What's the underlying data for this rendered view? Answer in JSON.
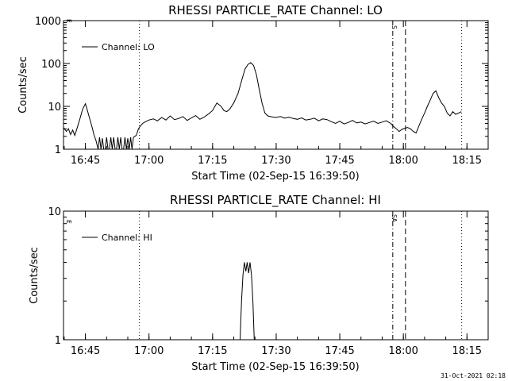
{
  "footer": {
    "timestamp": "31-Oct-2021 02:18"
  },
  "chart_data": [
    {
      "type": "line",
      "title": "RHESSI PARTICLE_RATE Channel: LO",
      "xlabel": "Start Time (02-Sep-15 16:39:50)",
      "ylabel": "Counts/sec",
      "y_scale": "log",
      "ylim": [
        1,
        1000
      ],
      "xlim": [
        "16:39:50",
        "18:20:00"
      ],
      "x_ticks": [
        "16:45",
        "17:00",
        "17:15",
        "17:30",
        "17:45",
        "18:00",
        "18:15"
      ],
      "y_ticks": [
        "1",
        "10",
        "100",
        "1000"
      ],
      "legend": {
        "position": "top-left",
        "entries": [
          "Channel: LO"
        ]
      },
      "markers": [
        {
          "time": "16:57:45",
          "style": "dotted"
        },
        {
          "time": "17:57:30",
          "style": "dash-dot"
        },
        {
          "time": "18:00:30",
          "style": "dashed"
        },
        {
          "time": "18:13:45",
          "style": "dotted"
        }
      ],
      "marker_labels": [
        "S",
        "E"
      ],
      "series": [
        {
          "name": "Channel: LO",
          "x": [
            "16:39:50",
            "16:40:30",
            "16:41:00",
            "16:41:30",
            "16:42:00",
            "16:42:30",
            "16:43:00",
            "16:43:40",
            "16:44:20",
            "16:45:00",
            "16:45:20",
            "16:45:50",
            "16:46:30",
            "16:47:00",
            "16:47:30",
            "16:48:00",
            "16:48:20",
            "16:48:40",
            "16:49:00",
            "16:49:20",
            "16:49:40",
            "16:50:00",
            "16:50:20",
            "16:50:40",
            "16:51:00",
            "16:51:20",
            "16:51:40",
            "16:52:00",
            "16:52:20",
            "16:52:40",
            "16:53:00",
            "16:53:20",
            "16:53:40",
            "16:54:00",
            "16:54:20",
            "16:54:40",
            "16:55:00",
            "16:55:20",
            "16:55:40",
            "16:56:00",
            "16:56:20",
            "16:56:40",
            "16:57:00",
            "16:57:30",
            "16:58:00",
            "16:58:30",
            "16:59:00",
            "17:00:00",
            "17:01:00",
            "17:02:00",
            "17:03:00",
            "17:04:00",
            "17:05:00",
            "17:06:00",
            "17:07:00",
            "17:08:00",
            "17:09:00",
            "17:10:00",
            "17:11:00",
            "17:12:00",
            "17:13:00",
            "17:14:00",
            "17:15:00",
            "17:16:00",
            "17:17:00",
            "17:17:40",
            "17:18:20",
            "17:19:00",
            "17:20:00",
            "17:21:00",
            "17:22:00",
            "17:22:40",
            "17:23:20",
            "17:24:00",
            "17:24:40",
            "17:25:20",
            "17:26:00",
            "17:26:40",
            "17:27:20",
            "17:28:00",
            "17:29:00",
            "17:30:00",
            "17:31:00",
            "17:32:00",
            "17:33:00",
            "17:34:00",
            "17:35:00",
            "17:36:00",
            "17:37:00",
            "17:38:00",
            "17:39:00",
            "17:40:00",
            "17:41:00",
            "17:42:00",
            "17:43:00",
            "17:44:00",
            "17:45:00",
            "17:46:00",
            "17:47:00",
            "17:48:00",
            "17:49:00",
            "17:50:00",
            "17:51:00",
            "17:52:00",
            "17:53:00",
            "17:54:00",
            "17:55:00",
            "17:56:00",
            "17:57:00",
            "17:57:40",
            "17:58:20",
            "17:59:00",
            "17:59:40",
            "18:00:20",
            "18:01:00",
            "18:01:40",
            "18:02:20",
            "18:03:00",
            "18:03:40",
            "18:04:20",
            "18:05:00",
            "18:05:40",
            "18:06:20",
            "18:07:00",
            "18:07:40",
            "18:08:20",
            "18:09:00",
            "18:09:40",
            "18:10:20",
            "18:11:00",
            "18:11:40",
            "18:12:20",
            "18:13:00",
            "18:13:40"
          ],
          "values": [
            3.2,
            2.6,
            3.0,
            2.2,
            2.8,
            2.1,
            3.0,
            5.0,
            8.5,
            11.5,
            9.0,
            6.0,
            3.5,
            2.2,
            1.6,
            1.0,
            1.9,
            1.0,
            1.8,
            1.0,
            1.0,
            1.9,
            1.0,
            1.0,
            1.9,
            1.0,
            1.9,
            1.0,
            1.0,
            1.9,
            1.0,
            1.9,
            1.0,
            1.0,
            1.9,
            1.0,
            1.8,
            1.0,
            1.9,
            1.0,
            1.9,
            2.0,
            2.1,
            3.0,
            3.5,
            4.0,
            4.3,
            4.8,
            5.1,
            4.6,
            5.5,
            4.8,
            6.0,
            4.9,
            5.2,
            5.8,
            4.7,
            5.4,
            6.1,
            5.0,
            5.6,
            6.6,
            8.0,
            12.0,
            10.0,
            8.0,
            7.5,
            8.5,
            12.0,
            20.0,
            45.0,
            75.0,
            95.0,
            105.0,
            90.0,
            55.0,
            25.0,
            12.0,
            7.0,
            6.0,
            5.7,
            5.5,
            5.8,
            5.3,
            5.6,
            5.2,
            5.0,
            5.4,
            4.8,
            5.0,
            5.3,
            4.6,
            5.1,
            4.9,
            4.4,
            4.0,
            4.5,
            3.9,
            4.2,
            4.7,
            4.1,
            4.3,
            3.9,
            4.2,
            4.5,
            4.0,
            4.3,
            4.6,
            4.0,
            3.4,
            3.0,
            2.6,
            2.9,
            3.1,
            3.2,
            3.0,
            2.6,
            2.4,
            3.5,
            5.0,
            7.0,
            10.0,
            14.0,
            20.0,
            23.0,
            16.0,
            12.0,
            10.0,
            7.0,
            6.0,
            7.5,
            6.5,
            7.0,
            7.5
          ]
        }
      ]
    },
    {
      "type": "line",
      "title": "RHESSI PARTICLE_RATE Channel: HI",
      "xlabel": "Start Time (02-Sep-15 16:39:50)",
      "ylabel": "Counts/sec",
      "y_scale": "log",
      "ylim": [
        1,
        10
      ],
      "xlim": [
        "16:39:50",
        "18:20:00"
      ],
      "x_ticks": [
        "16:45",
        "17:00",
        "17:15",
        "17:30",
        "17:45",
        "18:00",
        "18:15"
      ],
      "y_ticks": [
        "1",
        "10"
      ],
      "legend": {
        "position": "top-left",
        "entries": [
          "Channel: HI"
        ]
      },
      "markers": [
        {
          "time": "16:57:45",
          "style": "dotted"
        },
        {
          "time": "17:57:30",
          "style": "dash-dot"
        },
        {
          "time": "18:00:30",
          "style": "dashed"
        },
        {
          "time": "18:13:45",
          "style": "dotted"
        }
      ],
      "marker_labels": [
        "E",
        "SA"
      ],
      "series": [
        {
          "name": "Channel: HI",
          "x": [
            "17:21:30",
            "17:21:50",
            "17:22:10",
            "17:22:30",
            "17:22:50",
            "17:23:10",
            "17:23:30",
            "17:23:50",
            "17:24:10",
            "17:24:30",
            "17:24:50"
          ],
          "values": [
            1.0,
            2.0,
            3.2,
            4.0,
            3.4,
            4.0,
            3.3,
            4.0,
            3.2,
            2.0,
            1.0
          ]
        }
      ]
    }
  ]
}
